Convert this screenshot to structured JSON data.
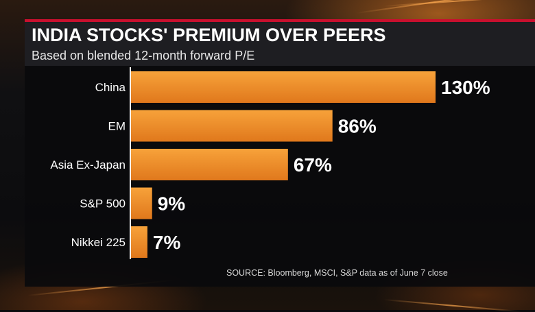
{
  "chart_data": {
    "type": "bar",
    "orientation": "horizontal",
    "title": "INDIA STOCKS' PREMIUM OVER PEERS",
    "subtitle": "Based on blended 12-month forward P/E",
    "categories": [
      "China",
      "EM",
      "Asia Ex-Japan",
      "S&P 500",
      "Nikkei 225"
    ],
    "values": [
      130,
      86,
      67,
      9,
      7
    ],
    "value_labels": [
      "130%",
      "86%",
      "67%",
      "9%",
      "7%"
    ],
    "unit": "%",
    "xlim": [
      0,
      130
    ],
    "source": "SOURCE: Bloomberg, MSCI, S&P data as of June 7 close",
    "colors": {
      "bar_top": "#f7a23a",
      "bar_bottom": "#e0781c",
      "accent": "#c8102e",
      "text": "#ffffff"
    }
  }
}
